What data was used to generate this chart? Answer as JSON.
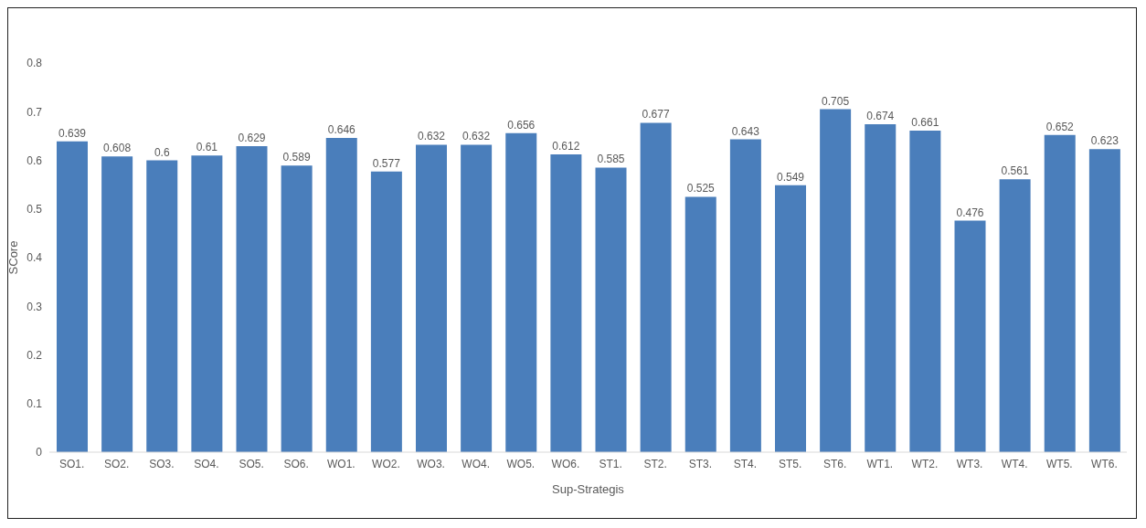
{
  "chart_data": {
    "type": "bar",
    "xlabel": "Sup-Strategis",
    "ylabel": "SCore",
    "categories": [
      "SO1.",
      "SO2.",
      "SO3.",
      "SO4.",
      "SO5.",
      "SO6.",
      "WO1.",
      "WO2.",
      "WO3.",
      "WO4.",
      "WO5.",
      "WO6.",
      "ST1.",
      "ST2.",
      "ST3.",
      "ST4.",
      "ST5.",
      "ST6.",
      "WT1.",
      "WT2.",
      "WT3.",
      "WT4.",
      "WT5.",
      "WT6."
    ],
    "values": [
      0.639,
      0.608,
      0.6,
      0.61,
      0.629,
      0.589,
      0.646,
      0.577,
      0.632,
      0.632,
      0.656,
      0.612,
      0.585,
      0.677,
      0.525,
      0.643,
      0.549,
      0.705,
      0.674,
      0.661,
      0.476,
      0.561,
      0.652,
      0.623
    ],
    "color": "#4a7ebb",
    "ylim": [
      0,
      0.8
    ],
    "yticks": [
      0,
      0.1,
      0.2,
      0.3,
      0.4,
      0.5,
      0.6,
      0.7,
      0.8
    ],
    "data_labels": true,
    "grid": false
  }
}
